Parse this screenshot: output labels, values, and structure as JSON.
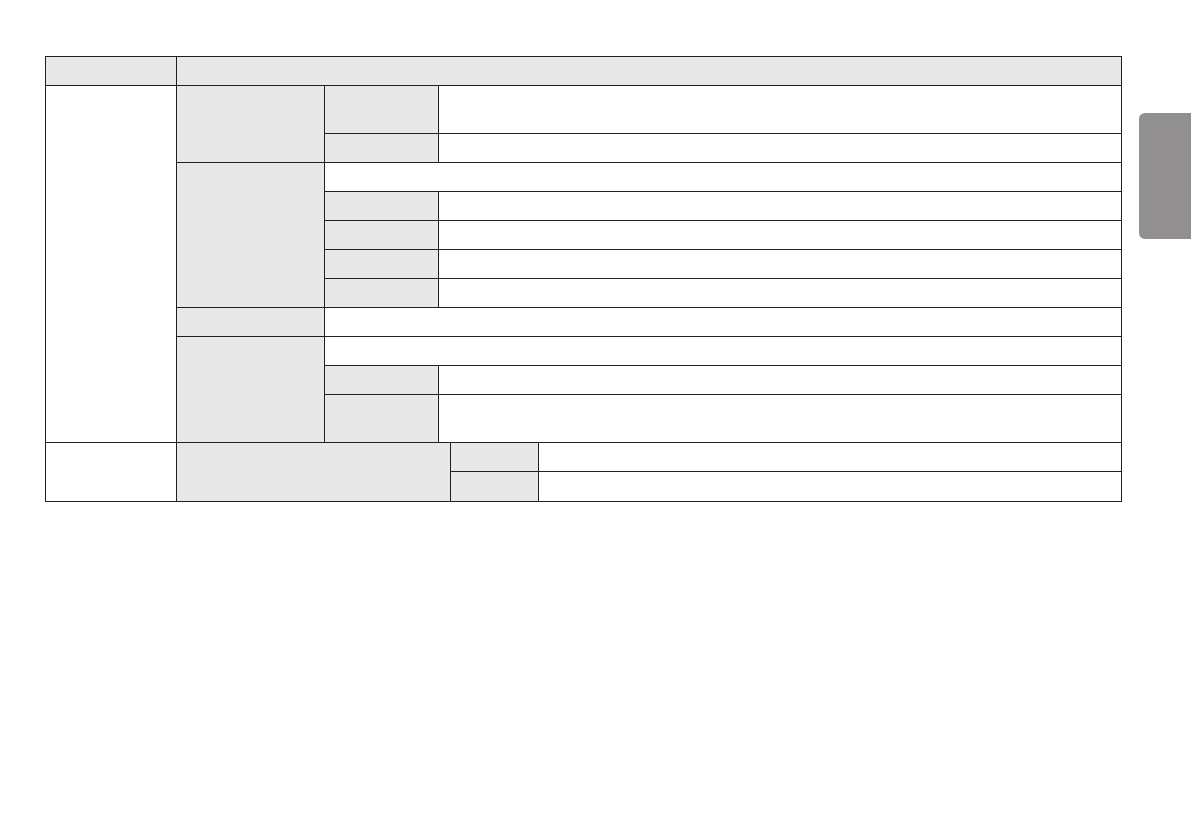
{
  "colors": {
    "header_fill": "#e8e8e8",
    "body_fill": "#ffffff",
    "border": "#231f20",
    "side_tab": "#918f8f"
  }
}
